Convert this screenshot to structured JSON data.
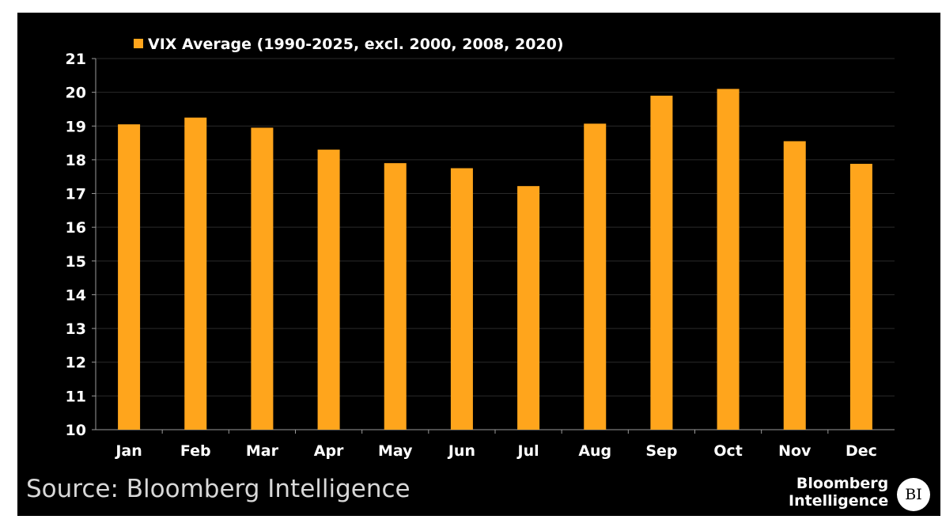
{
  "chart_data": {
    "type": "bar",
    "title": "",
    "legend": {
      "label": "VIX Average (1990-2025, excl. 2000, 2008, 2020)",
      "position": "top-left"
    },
    "categories": [
      "Jan",
      "Feb",
      "Mar",
      "Apr",
      "May",
      "Jun",
      "Jul",
      "Aug",
      "Sep",
      "Oct",
      "Nov",
      "Dec"
    ],
    "series": [
      {
        "name": "VIX Average (1990-2025, excl. 2000, 2008, 2020)",
        "values": [
          19.05,
          19.25,
          18.95,
          18.3,
          17.9,
          17.75,
          17.22,
          19.07,
          19.9,
          20.1,
          18.55,
          17.88
        ]
      }
    ],
    "xlabel": "",
    "ylabel": "",
    "ylim": [
      10,
      21
    ],
    "yticks": [
      "10",
      "11",
      "12",
      "13",
      "14",
      "15",
      "16",
      "17",
      "18",
      "19",
      "20",
      "21"
    ],
    "grid": true
  },
  "colors": {
    "bar": "#FFA51C",
    "background": "#000000",
    "gridline": "#2a2a2a",
    "axis": "#9a9a9a",
    "text": "#ffffff"
  },
  "footer": {
    "source": "Source: Bloomberg Intelligence",
    "brand_line1": "Bloomberg",
    "brand_line2": "Intelligence",
    "logo_text": "BI"
  }
}
